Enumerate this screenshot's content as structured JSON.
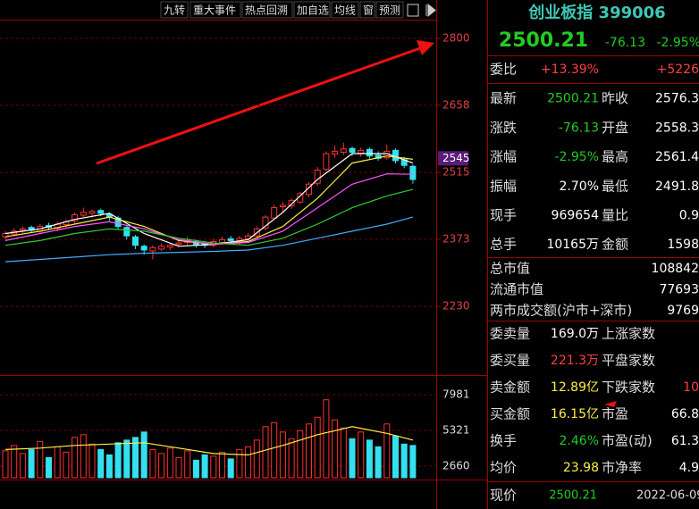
{
  "toolbar": [
    "九转",
    "重大事件",
    "热点回溯",
    "加自选",
    "均线",
    "窗",
    "预测"
  ],
  "chart": {
    "type": "candlestick",
    "ylim": [
      2084,
      2840
    ],
    "yticks": [
      2230,
      2373,
      2515,
      2658,
      2800
    ],
    "marker": 2545,
    "open": [
      2378,
      2384,
      2392,
      2398,
      2390,
      2402,
      2396,
      2404,
      2412,
      2424,
      2428,
      2434,
      2426,
      2418,
      2398,
      2378,
      2358,
      2348,
      2352,
      2356,
      2362,
      2366,
      2368,
      2364,
      2360,
      2366,
      2374,
      2368,
      2374,
      2380,
      2396,
      2418,
      2442,
      2444,
      2452,
      2468,
      2492,
      2522,
      2554,
      2558,
      2566,
      2556,
      2564,
      2552,
      2546,
      2562,
      2542,
      2528
    ],
    "close": [
      2385,
      2390,
      2395,
      2392,
      2400,
      2398,
      2405,
      2410,
      2425,
      2430,
      2432,
      2428,
      2420,
      2400,
      2380,
      2360,
      2350,
      2355,
      2358,
      2360,
      2365,
      2370,
      2362,
      2360,
      2368,
      2372,
      2370,
      2375,
      2380,
      2395,
      2420,
      2440,
      2445,
      2455,
      2470,
      2490,
      2520,
      2555,
      2560,
      2565,
      2558,
      2562,
      2550,
      2545,
      2560,
      2540,
      2530,
      2500
    ],
    "high": [
      2390,
      2396,
      2400,
      2402,
      2405,
      2408,
      2410,
      2415,
      2430,
      2440,
      2436,
      2438,
      2430,
      2422,
      2402,
      2382,
      2362,
      2360,
      2364,
      2366,
      2372,
      2378,
      2372,
      2368,
      2374,
      2378,
      2380,
      2380,
      2386,
      2400,
      2424,
      2446,
      2452,
      2460,
      2474,
      2494,
      2526,
      2560,
      2572,
      2578,
      2570,
      2568,
      2568,
      2560,
      2574,
      2566,
      2548,
      2532
    ],
    "low": [
      2372,
      2380,
      2386,
      2388,
      2386,
      2392,
      2390,
      2398,
      2405,
      2420,
      2418,
      2422,
      2412,
      2395,
      2372,
      2352,
      2340,
      2330,
      2348,
      2350,
      2356,
      2360,
      2355,
      2354,
      2356,
      2362,
      2364,
      2362,
      2370,
      2376,
      2392,
      2414,
      2432,
      2438,
      2448,
      2462,
      2486,
      2516,
      2546,
      2552,
      2550,
      2548,
      2544,
      2540,
      2542,
      2534,
      2524,
      2491
    ],
    "ma": [
      {
        "color": "#ffffff",
        "x": [
          0,
          4,
          8,
          12,
          16,
          20,
          24,
          28,
          32,
          36,
          40,
          44,
          47
        ],
        "values": [
          2385,
          2395,
          2415,
          2428,
          2385,
          2358,
          2362,
          2372,
          2430,
          2500,
          2555,
          2555,
          2535
        ]
      },
      {
        "color": "#ffee44",
        "x": [
          0,
          4,
          8,
          12,
          16,
          20,
          24,
          28,
          32,
          36,
          40,
          44,
          47
        ],
        "values": [
          2378,
          2390,
          2405,
          2420,
          2400,
          2370,
          2362,
          2368,
          2400,
          2460,
          2535,
          2550,
          2543
        ]
      },
      {
        "color": "#ff55ff",
        "x": [
          0,
          4,
          8,
          12,
          16,
          20,
          24,
          28,
          32,
          36,
          40,
          44,
          47
        ],
        "values": [
          2370,
          2385,
          2400,
          2410,
          2395,
          2372,
          2362,
          2366,
          2390,
          2440,
          2490,
          2512,
          2511
        ]
      },
      {
        "color": "#33cc33",
        "x": [
          0,
          4,
          8,
          12,
          16,
          20,
          24,
          28,
          32,
          36,
          40,
          44,
          47
        ],
        "values": [
          2360,
          2370,
          2385,
          2395,
          2390,
          2375,
          2365,
          2360,
          2375,
          2405,
          2440,
          2465,
          2479
        ]
      },
      {
        "color": "#44aaff",
        "x": [
          0,
          4,
          8,
          12,
          16,
          20,
          24,
          28,
          32,
          36,
          40,
          44,
          47
        ],
        "values": [
          2325,
          2330,
          2335,
          2340,
          2343,
          2345,
          2347,
          2350,
          2360,
          2375,
          2390,
          2405,
          2420
        ]
      }
    ],
    "volume": {
      "ylim": [
        1795,
        9311
      ],
      "yticks": [
        2660,
        5321,
        7981
      ],
      "values": [
        3800,
        4200,
        3600,
        3900,
        4500,
        3300,
        4100,
        3700,
        4800,
        5000,
        4300,
        3900,
        3500,
        4400,
        4600,
        4800,
        5200,
        3900,
        3600,
        4000,
        3300,
        3800,
        3100,
        3500,
        3400,
        3700,
        3200,
        3900,
        4100,
        4600,
        5600,
        5900,
        5200,
        4700,
        5300,
        5800,
        6300,
        7600,
        6100,
        5500,
        4700,
        5200,
        4600,
        4100,
        5800,
        4900,
        4300,
        4200
      ],
      "ma": {
        "color": "#ffee44",
        "x": [
          0,
          4,
          8,
          12,
          16,
          20,
          24,
          28,
          32,
          36,
          40,
          44,
          47
        ],
        "values": [
          3900,
          4000,
          4200,
          4300,
          4400,
          4000,
          3600,
          3500,
          4200,
          5000,
          5600,
          5100,
          4600
        ]
      }
    }
  },
  "quote": {
    "name": "创业板指 399006",
    "price": "2500.21",
    "change": "-76.13",
    "change_pct": "-2.95%",
    "rows_a": [
      {
        "label": "委比",
        "value": "+13.39%",
        "value2": "+5226"
      },
      {
        "label": "最新",
        "value": "2500.21",
        "label2": "昨收",
        "value2": "2576.3"
      },
      {
        "label": "涨跌",
        "value": "-76.13",
        "label2": "开盘",
        "value2": "2558.3"
      },
      {
        "label": "涨幅",
        "value": "-2.95%",
        "label2": "最高",
        "value2": "2561.4"
      },
      {
        "label": "振幅",
        "value": "2.70%",
        "label2": "最低",
        "value2": "2491.8"
      },
      {
        "label": "现手",
        "value": "969654",
        "label2": "量比",
        "value2": "0.9"
      },
      {
        "label": "总手",
        "value": "10165万",
        "label2": "金额",
        "value2": "1598"
      }
    ],
    "rows_b": [
      {
        "label": "总市值",
        "value2": "108842"
      },
      {
        "label": "流通市值",
        "value2": "77693"
      },
      {
        "label": "两市成交额(沪市+深市)",
        "value2": "9769"
      }
    ],
    "rows_c": [
      {
        "label": "委卖量",
        "value": "169.0万",
        "label2": "上涨家数"
      },
      {
        "label": "委买量",
        "value": "221.3万",
        "label2": "平盘家数"
      },
      {
        "label": "卖金额",
        "value": "12.89亿",
        "label2": "下跌家数",
        "value2": "10"
      },
      {
        "label": "买金额",
        "value": "16.15亿",
        "label2": "市盈",
        "value2": "66.8"
      },
      {
        "label": "换手",
        "value": "2.46%",
        "label2": "市盈(动)",
        "value2": "61.3"
      },
      {
        "label": "均价",
        "value": "23.98",
        "label2": "市净率",
        "value2": "4.9"
      }
    ],
    "footer": {
      "label": "现价",
      "value": "2500.21",
      "date": "2022-06-09,"
    }
  }
}
